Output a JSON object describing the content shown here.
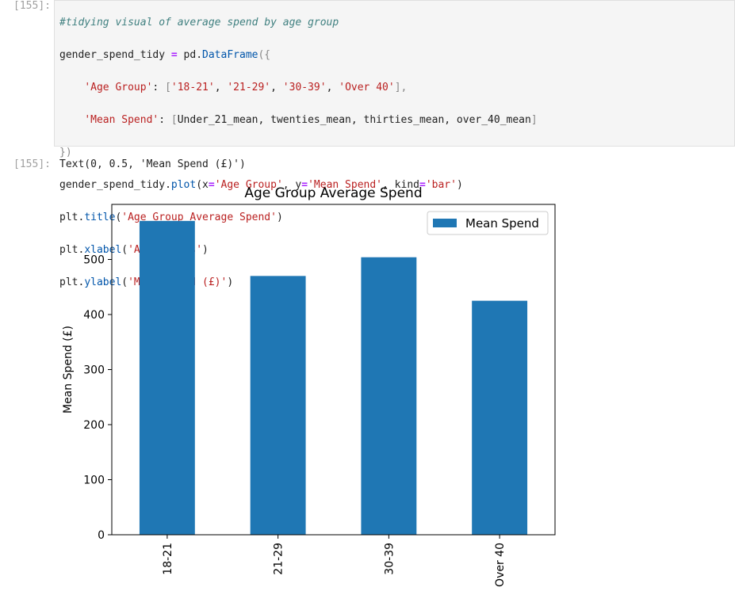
{
  "cell_input": {
    "prompt": "[155]:",
    "comment": "#tidying visual of average spend by age group",
    "line1_var": "gender_spend_tidy",
    "line1_eq": "=",
    "line1_mod": "pd",
    "line1_func": "DataFrame",
    "line1_open": "({",
    "line2_key": "'Age Group'",
    "line2_colon": ":",
    "line2_open": "[",
    "line2_v1": "'18-21'",
    "line2_v2": "'21-29'",
    "line2_v3": "'30-39'",
    "line2_v4": "'Over 40'",
    "line2_close": "],",
    "line3_key": "'Mean Spend'",
    "line3_colon": ":",
    "line3_open": "[",
    "line3_vals": "Under_21_mean, twenties_mean, thirties_mean, over_40_mean",
    "line3_close": "]",
    "line4": "})",
    "line5_var": "gender_spend_tidy",
    "line5_method": "plot",
    "line5_x": "'Age Group'",
    "line5_y": "'Mean Spend'",
    "line5_kind": "'bar'",
    "line6_mod": "plt",
    "line6_method": "title",
    "line6_arg": "'Age Group Average Spend'",
    "line7_mod": "plt",
    "line7_method": "xlabel",
    "line7_arg": "'Age groups'",
    "line8_mod": "plt",
    "line8_method": "ylabel",
    "line8_arg": "'Mean Spend (£)'"
  },
  "cell_output": {
    "prompt": "[155]:",
    "text": "Text(0, 0.5, 'Mean Spend (£)')"
  },
  "chart_data": {
    "type": "bar",
    "title": "Age Group Average Spend",
    "xlabel": "",
    "ylabel": "Mean Spend (£)",
    "categories": [
      "18-21",
      "21-29",
      "30-39",
      "Over 40"
    ],
    "series": [
      {
        "name": "Mean Spend",
        "values": [
          570,
          470,
          504,
          425
        ],
        "color": "#1f77b4"
      }
    ],
    "ylim": [
      0,
      600
    ],
    "yticks": [
      0,
      100,
      200,
      300,
      400,
      500
    ],
    "legend": "top-right",
    "grid": false
  }
}
